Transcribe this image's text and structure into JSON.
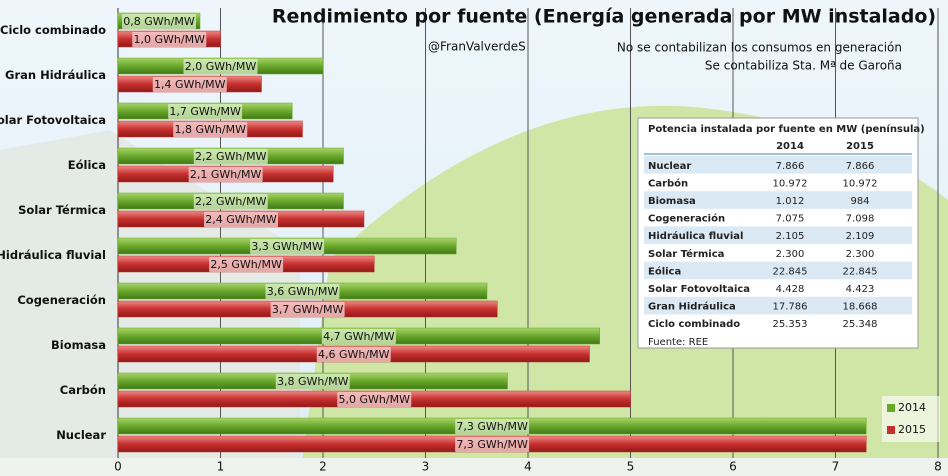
{
  "chart_data": {
    "type": "hbar",
    "title": "Rendimiento por fuente (Energía generada por MW instalado)",
    "subtitle": "@FranValverdeS",
    "notes": [
      "No se contabilizan los consumos en generación",
      "Se contabiliza Sta. Mª de Garoña"
    ],
    "categories": [
      "Ciclo combinado",
      "Gran Hidráulica",
      "Solar Fotovoltaica",
      "Eólica",
      "Solar Térmica",
      "Hidráulica fluvial",
      "Cogeneración",
      "Biomasa",
      "Carbón",
      "Nuclear"
    ],
    "series": [
      {
        "name": "2014",
        "color": "#6aa82c",
        "values": [
          0.8,
          2.0,
          1.7,
          2.2,
          2.2,
          3.3,
          3.6,
          4.7,
          3.8,
          7.3
        ],
        "value_labels": [
          "0,8 GWh/MW",
          "2,0 GWh/MW",
          "1,7 GWh/MW",
          "2,2 GWh/MW",
          "2,2 GWh/MW",
          "3,3 GWh/MW",
          "3,6 GWh/MW",
          "4,7 GWh/MW",
          "3,8 GWh/MW",
          "7,3 GWh/MW"
        ]
      },
      {
        "name": "2015",
        "color": "#c8302e",
        "values": [
          1.0,
          1.4,
          1.8,
          2.1,
          2.4,
          2.5,
          3.7,
          4.6,
          5.0,
          7.3
        ],
        "value_labels": [
          "1,0 GWh/MW",
          "1,4 GWh/MW",
          "1,8 GWh/MW",
          "2,1 GWh/MW",
          "2,4 GWh/MW",
          "2,5 GWh/MW",
          "3,7 GWh/MW",
          "4,6 GWh/MW",
          "5,0 GWh/MW",
          "7,3 GWh/MW"
        ]
      }
    ],
    "xlim": [
      0,
      8
    ],
    "xticks": [
      0,
      1,
      2,
      3,
      4,
      5,
      6,
      7,
      8
    ],
    "grid": true,
    "legend": "bottom-right"
  },
  "table": {
    "title": "Potencia instalada por fuente en MW (península)",
    "columns": [
      "2014",
      "2015"
    ],
    "rows": [
      [
        "Nuclear",
        "7.866",
        "7.866"
      ],
      [
        "Carbón",
        "10.972",
        "10.972"
      ],
      [
        "Biomasa",
        "1.012",
        "984"
      ],
      [
        "Cogeneración",
        "7.075",
        "7.098"
      ],
      [
        "Hidráulica fluvial",
        "2.105",
        "2.109"
      ],
      [
        "Solar Térmica",
        "2.300",
        "2.300"
      ],
      [
        "Eólica",
        "22.845",
        "22.845"
      ],
      [
        "Solar Fotovoltaica",
        "4.428",
        "4.423"
      ],
      [
        "Gran Hidráulica",
        "17.786",
        "18.668"
      ],
      [
        "Ciclo combinado",
        "25.353",
        "25.348"
      ]
    ],
    "source": "Fuente: REE"
  }
}
